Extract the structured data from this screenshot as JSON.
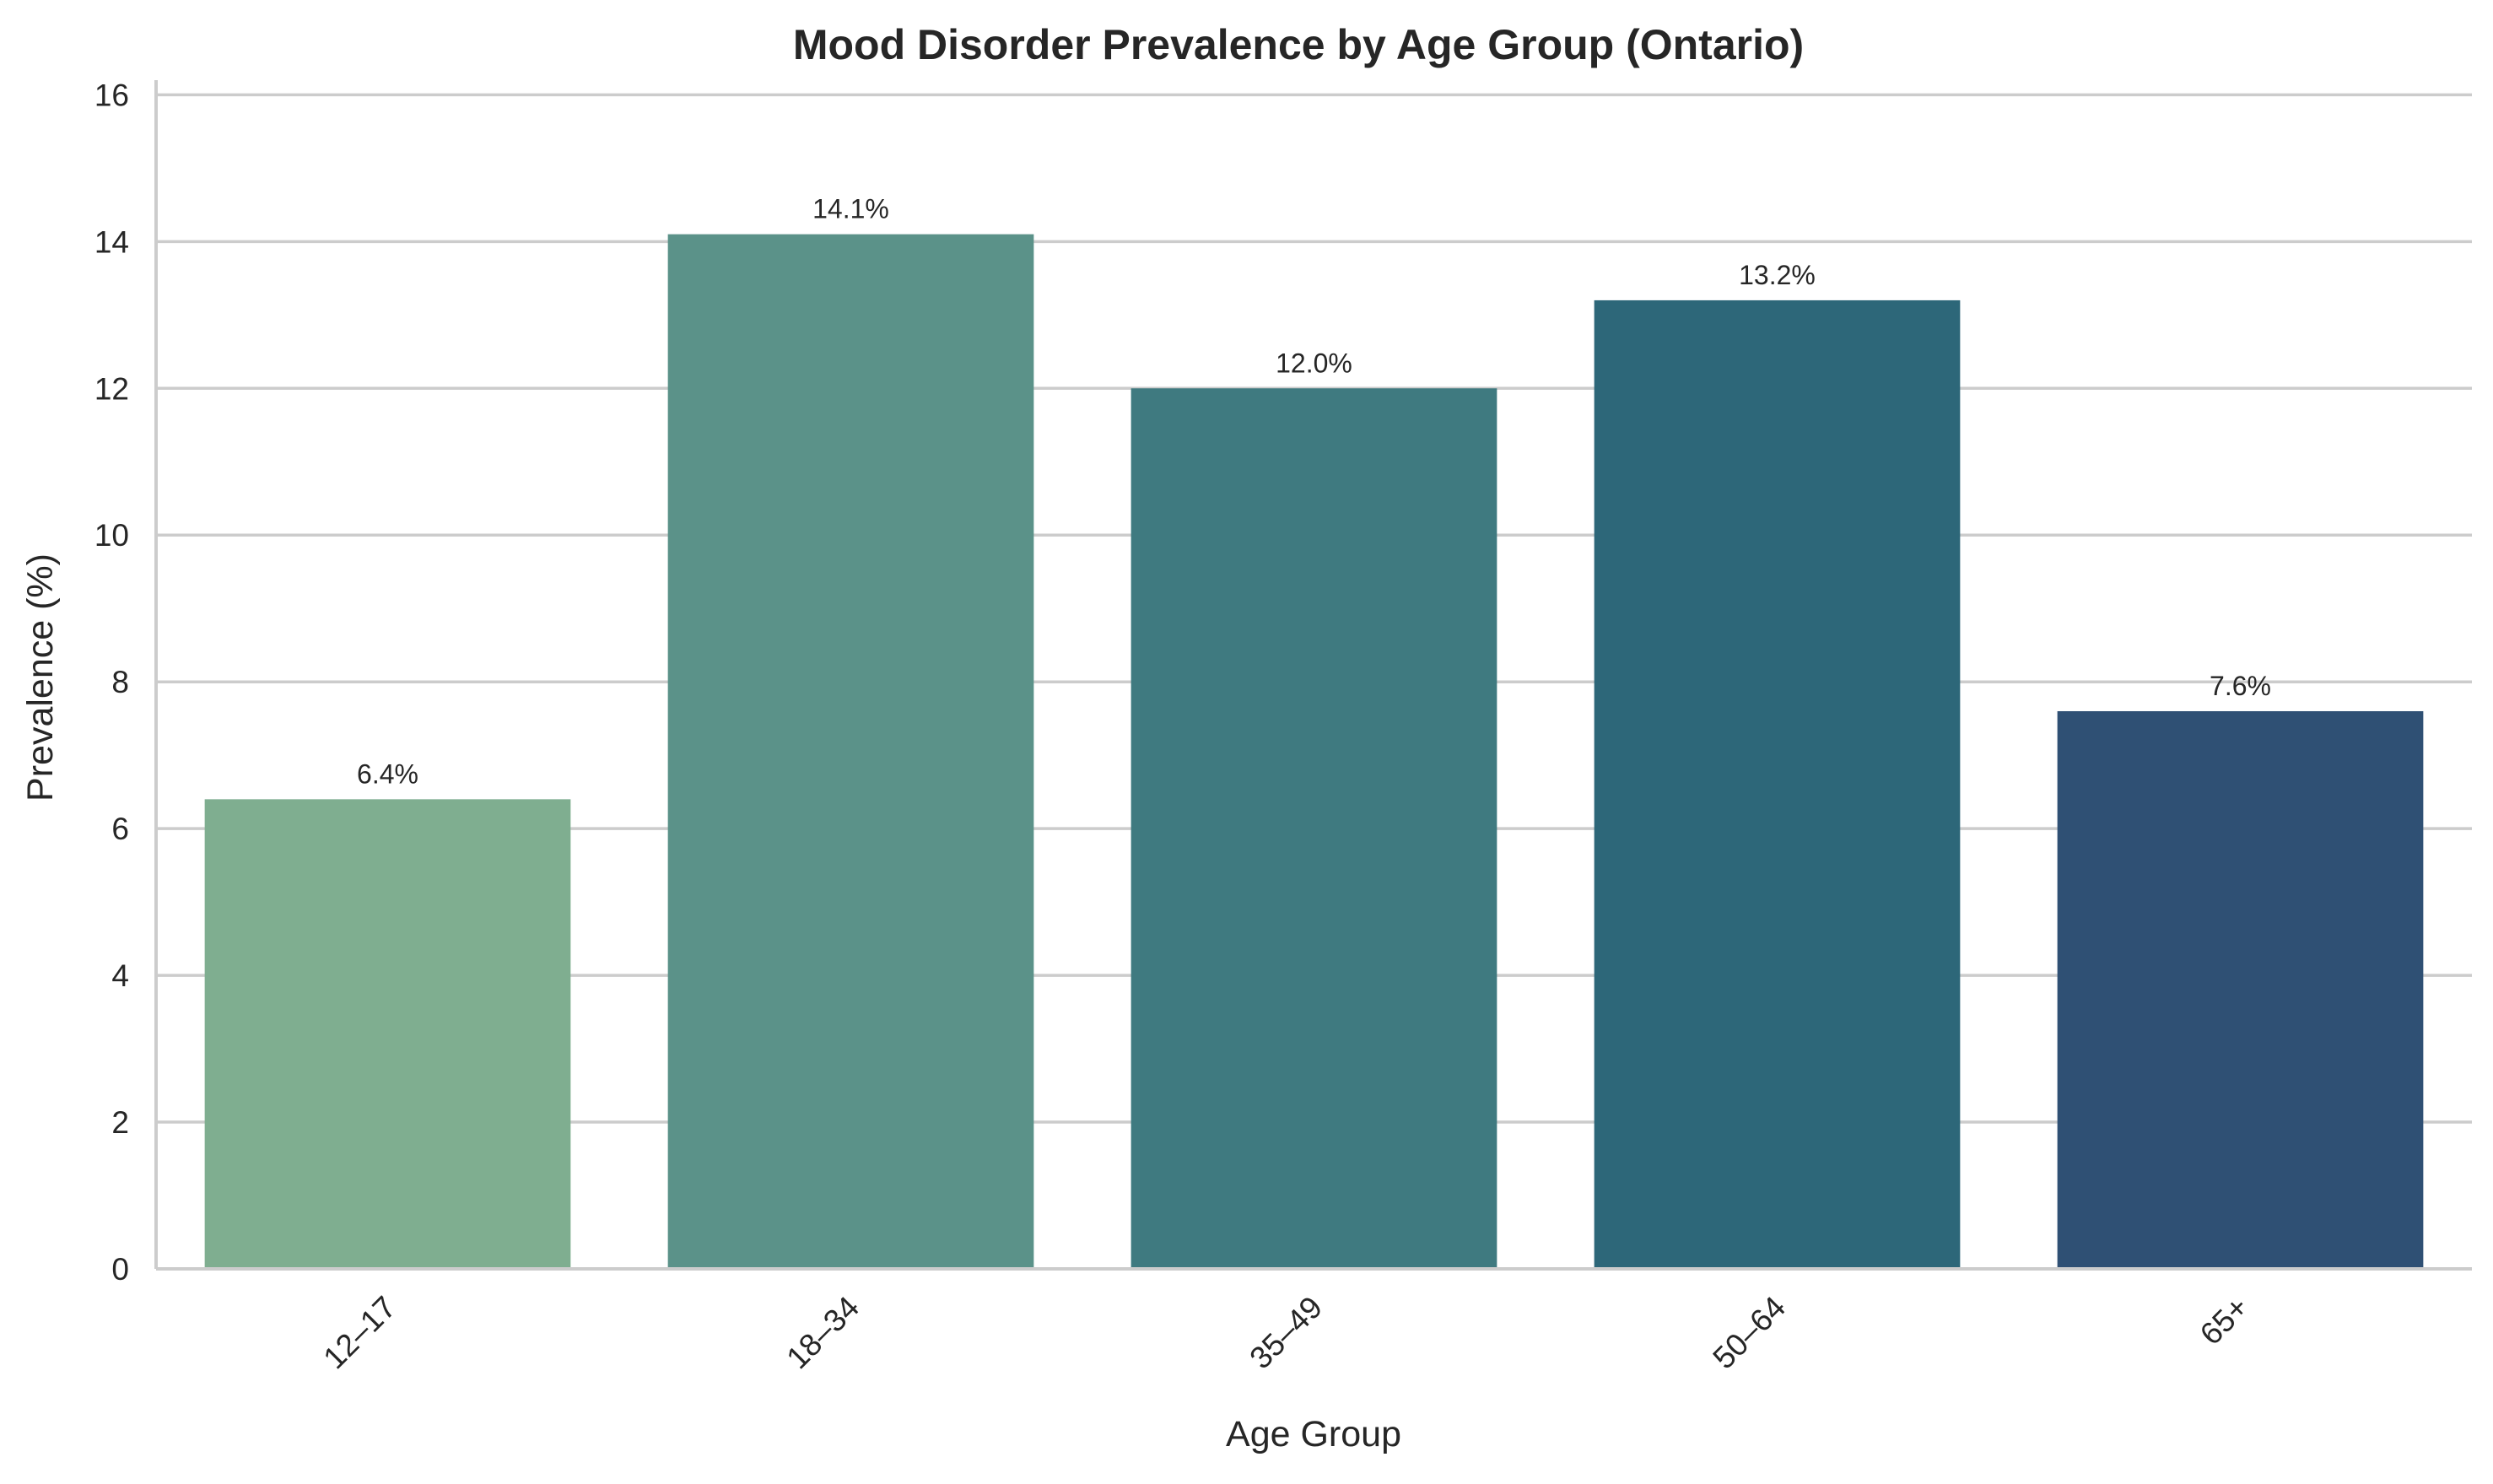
{
  "chart_data": {
    "type": "bar",
    "title": "Mood Disorder Prevalence by Age Group (Ontario)",
    "xlabel": "Age Group",
    "ylabel": "Prevalence (%)",
    "categories": [
      "12–17",
      "18–34",
      "35–49",
      "50–64",
      "65+"
    ],
    "values": [
      6.4,
      14.1,
      12.0,
      13.2,
      7.6
    ],
    "value_labels": [
      "6.4%",
      "14.1%",
      "12.0%",
      "13.2%",
      "7.6%"
    ],
    "colors": [
      "#7fae90",
      "#5b9289",
      "#3f7a80",
      "#2d6779",
      "#2f5074"
    ],
    "ylim": [
      0,
      16.2
    ],
    "yticks": [
      0,
      2,
      4,
      6,
      8,
      10,
      12,
      14,
      16
    ],
    "grid": "horizontal",
    "legend": "none"
  }
}
